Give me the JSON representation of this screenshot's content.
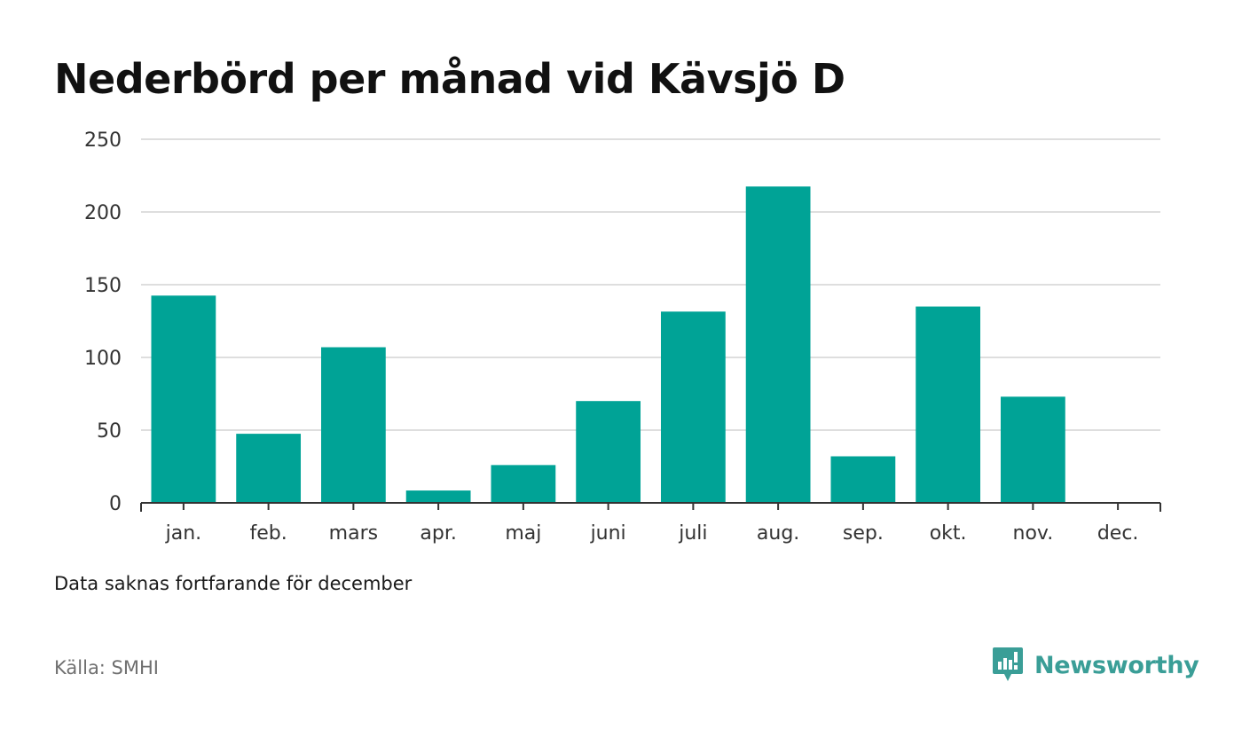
{
  "chart_data": {
    "type": "bar",
    "title": "Nederbörd per månad vid Kävsjö D",
    "categories": [
      "jan.",
      "feb.",
      "mars",
      "apr.",
      "maj",
      "juni",
      "juli",
      "aug.",
      "sep.",
      "okt.",
      "nov.",
      "dec."
    ],
    "values": [
      142.5,
      47.5,
      107,
      8.5,
      26,
      70,
      131.5,
      217.5,
      32,
      135,
      73,
      null
    ],
    "ylim": [
      0,
      250
    ],
    "yticks": [
      0,
      50,
      100,
      150,
      200,
      250
    ],
    "xlabel": "",
    "ylabel": "",
    "grid": true,
    "bar_color": "#00a396"
  },
  "note": "Data saknas fortfarande för december",
  "source": "Källa: SMHI",
  "brand": {
    "name": "Newsworthy",
    "icon": "newsworthy-logo-icon",
    "color": "#3a9e97"
  }
}
